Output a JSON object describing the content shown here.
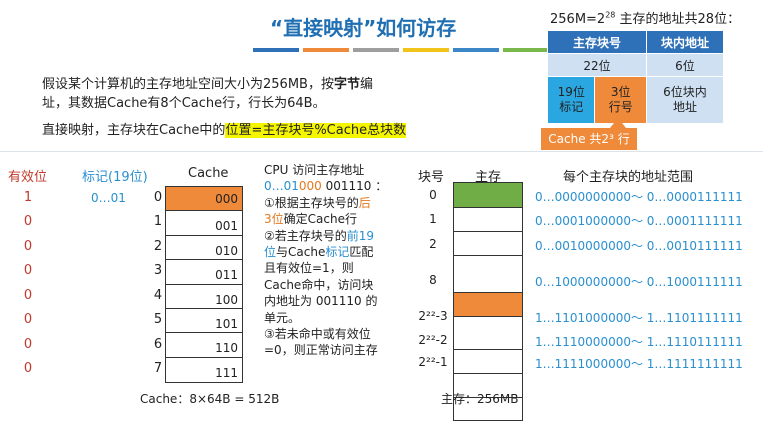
{
  "title": "“直接映射”如何访存",
  "accent_bars": [
    "#2f71b8",
    "#ef8a3a",
    "#9e9e9e",
    "#f0c419",
    "#3c87c7",
    "#79b84a"
  ],
  "intro": {
    "line1_a": "假设某个计算机的主存地址空间大小为256MB，按",
    "line1_b": "字节",
    "line1_c": "编",
    "line2": "址，其数据Cache有8个Cache行，行长为64B。"
  },
  "direct": {
    "prefix": "直接映射，主存块在Cache中的",
    "highlight": "位置=主存块号%Cache总块数"
  },
  "addr_table": {
    "caption_a": "256M=2",
    "caption_sup": "28",
    "caption_b": " 主存的地址共28位：",
    "head_block": "主存块号",
    "head_offset": "块内地址",
    "bits_block": "22位",
    "bits_offset": "6位",
    "tag_l1": "19位",
    "tag_l2": "标记",
    "idx_l1": "3位",
    "idx_l2": "行号",
    "off_l1": "6位块内",
    "off_l2": "地址",
    "callout": "Cache 共2³ 行"
  },
  "cache_section": {
    "valid_header": "有效位",
    "tag_header": "标记(19位)",
    "cache_header": "Cache",
    "valid_bits": [
      "1",
      "0",
      "0",
      "0",
      "0",
      "0",
      "0",
      "0"
    ],
    "row0_tag": "0…01",
    "row_indices": [
      "0",
      "1",
      "2",
      "3",
      "4",
      "5",
      "6",
      "7"
    ],
    "lines": [
      "000",
      "001",
      "010",
      "011",
      "100",
      "101",
      "110",
      "111"
    ],
    "footer": "Cache：8×64B = 512B"
  },
  "cpu_text": {
    "l1": "CPU 访问主存地址",
    "l2_a": "0…01",
    "l2_b": "000",
    "l2_c": " 001110 ：",
    "l3_a": "①根据主存块号的",
    "l3_b": "后",
    "l4_a": "3位",
    "l4_b": "确定Cache行",
    "l5_a": "②若主存块号的",
    "l5_b": "前19",
    "l6_a": "位",
    "l6_b": "与Cache",
    "l6_c": "标记",
    "l6_d": "匹配",
    "l7": "且有效位=1，则",
    "l8": "Cache命中，访问块",
    "l9": "内地址为 001110 的",
    "l10": "单元。",
    "l11": "③若未命中或有效位",
    "l12": "=0，则正常访问主存"
  },
  "memory": {
    "block_header": "块号",
    "mem_header": "主存",
    "range_header": "每个主存块的地址范围",
    "blocks": [
      {
        "no": "0",
        "range_a": "0…0000000000～ 0…0000111111"
      },
      {
        "no": "1",
        "range_a": "0…0001000000～ 0…0001111111"
      },
      {
        "no": "2",
        "range_a": "0…0010000000～ 0…0010111111"
      },
      {
        "no": "8",
        "range_a": "0…1000000000～ 0…1000111111"
      },
      {
        "no": "2²²-3",
        "range_a": "1…1101000000～ 1…1101111111"
      },
      {
        "no": "2²²-2",
        "range_a": "1…1110000000～ 1…1110111111"
      },
      {
        "no": "2²²-1",
        "range_a": "1…1111000000～ 1…1111111111"
      }
    ],
    "footer": "主存：256MB"
  },
  "colors": {
    "blue": "#2f71b8",
    "orange": "#ef8a3a",
    "green": "#70ad47",
    "highlight": "#f5f500"
  }
}
